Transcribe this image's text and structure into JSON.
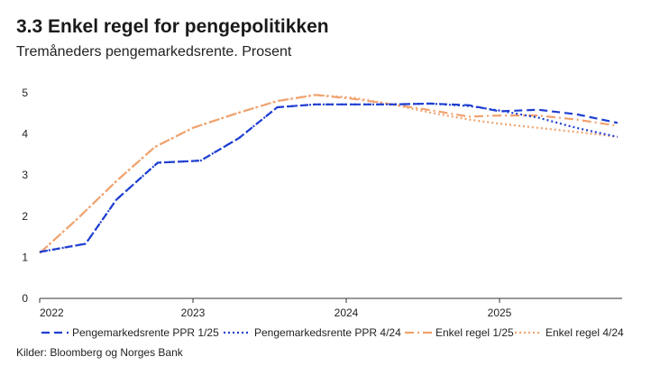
{
  "header": {
    "title": "3.3 Enkel regel for pengepolitikken",
    "subtitle": "Tremåneders pengemarkedsrente. Prosent"
  },
  "source": "Kilder: Bloomberg og Norges Bank",
  "colors": {
    "blue": "#1f3fd1",
    "orange": "#f0a26e",
    "axis": "#333333"
  },
  "chart_data": {
    "type": "line",
    "title": "3.3 Enkel regel for pengepolitikken",
    "subtitle": "Tremåneders pengemarkedsrente. Prosent",
    "xlim": [
      2022.0,
      2025.8
    ],
    "ylim": [
      0,
      5
    ],
    "yticks": [
      0,
      1,
      2,
      3,
      4,
      5
    ],
    "xticks": [
      2022,
      2023,
      2024,
      2025
    ],
    "grid": false,
    "legend_position": "bottom",
    "series": [
      {
        "name": "Pengemarkedsrente PPR 1/25",
        "color": "#1f3fd1",
        "style": "dashed",
        "x": [
          2022.0,
          2022.3,
          2022.5,
          2022.77,
          2023.05,
          2023.3,
          2023.55,
          2023.8,
          2024.05,
          2024.3,
          2024.55,
          2024.8,
          2025.0,
          2025.25,
          2025.5,
          2025.77
        ],
        "y": [
          1.13,
          1.33,
          2.4,
          3.3,
          3.35,
          3.9,
          4.65,
          4.72,
          4.72,
          4.72,
          4.74,
          4.7,
          4.55,
          4.59,
          4.48,
          4.27
        ]
      },
      {
        "name": "Pengemarkedsrente PPR 4/24",
        "color": "#1f3fd1",
        "style": "dotted",
        "x": [
          2022.0,
          2022.3,
          2022.5,
          2022.77,
          2023.05,
          2023.3,
          2023.55,
          2023.8,
          2024.05,
          2024.3,
          2024.55,
          2024.8,
          2025.0,
          2025.25,
          2025.5,
          2025.77
        ],
        "y": [
          1.13,
          1.33,
          2.4,
          3.3,
          3.35,
          3.9,
          4.65,
          4.72,
          4.72,
          4.72,
          4.74,
          4.68,
          4.57,
          4.4,
          4.15,
          3.93
        ]
      },
      {
        "name": "Enkel regel 1/25",
        "color": "#f0a26e",
        "style": "dashdot",
        "x": [
          2022.0,
          2022.25,
          2022.5,
          2022.75,
          2023.0,
          2023.3,
          2023.55,
          2023.8,
          2024.05,
          2024.3,
          2024.55,
          2024.8,
          2025.0,
          2025.25,
          2025.5,
          2025.77
        ],
        "y": [
          1.1,
          1.95,
          2.85,
          3.68,
          4.15,
          4.52,
          4.8,
          4.95,
          4.85,
          4.72,
          4.58,
          4.42,
          4.45,
          4.45,
          4.35,
          4.2
        ]
      },
      {
        "name": "Enkel regel 4/24",
        "color": "#f0a26e",
        "style": "dotted",
        "x": [
          2022.0,
          2022.25,
          2022.5,
          2022.75,
          2023.0,
          2023.3,
          2023.55,
          2023.8,
          2024.05,
          2024.3,
          2024.55,
          2024.8,
          2025.0,
          2025.25,
          2025.5,
          2025.77
        ],
        "y": [
          1.1,
          1.95,
          2.85,
          3.68,
          4.15,
          4.52,
          4.8,
          4.95,
          4.88,
          4.72,
          4.52,
          4.35,
          4.25,
          4.15,
          4.05,
          3.93
        ]
      }
    ]
  }
}
